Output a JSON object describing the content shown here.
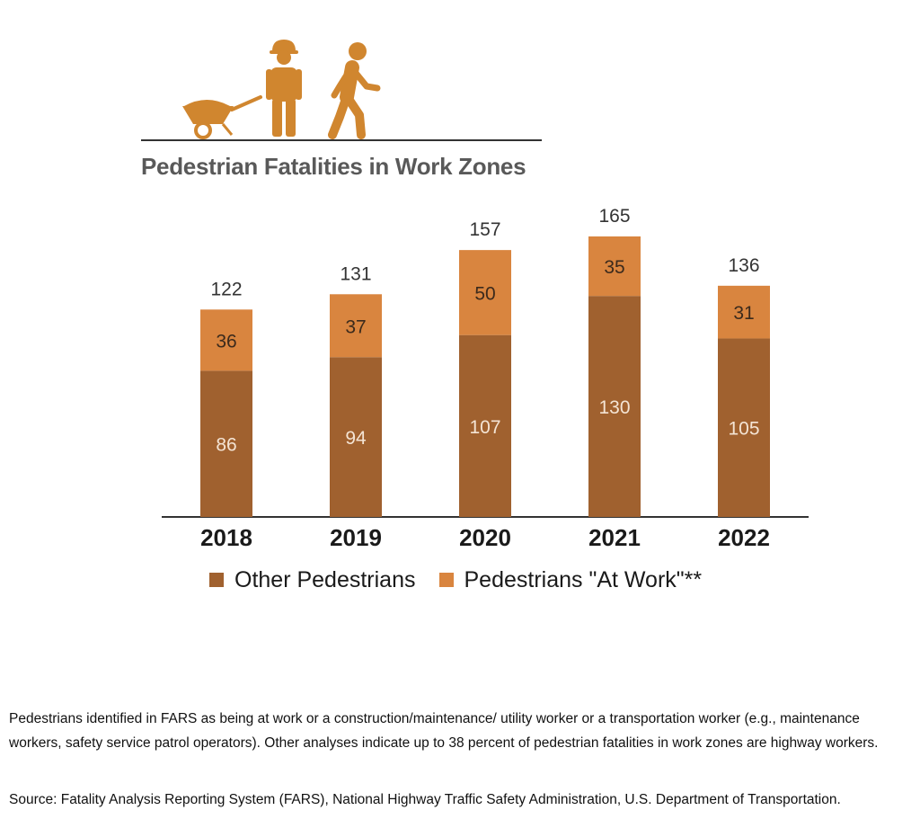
{
  "chart_data": {
    "type": "bar",
    "stacked": true,
    "title": "Pedestrian Fatalities in Work Zones",
    "categories": [
      "2018",
      "2019",
      "2020",
      "2021",
      "2022"
    ],
    "series": [
      {
        "name": "Other Pedestrians",
        "values": [
          86,
          94,
          107,
          130,
          105
        ],
        "color": "#a0612f"
      },
      {
        "name": "Pedestrians \"At Work\"**",
        "values": [
          36,
          37,
          50,
          35,
          31
        ],
        "color": "#d9853f"
      }
    ],
    "totals": [
      122,
      131,
      157,
      165,
      136
    ],
    "ylim": [
      0,
      165
    ],
    "grid": false,
    "legend": "bottom"
  },
  "icons": [
    "wheelbarrow-icon",
    "construction-worker-icon",
    "walking-pedestrian-icon"
  ],
  "colors": {
    "icon": "#d0862f",
    "rule": "#333333",
    "title": "#595959"
  },
  "footnote": "Pedestrians identified in FARS as being at work or a construction/maintenance/ utility worker or a transportation worker (e.g., maintenance workers, safety service patrol operators). Other analyses indicate up to 38 percent of pedestrian fatalities in work zones are highway workers.",
  "source": "Source: Fatality Analysis Reporting System (FARS), National Highway Traffic Safety Administration, U.S. Department of Transportation."
}
